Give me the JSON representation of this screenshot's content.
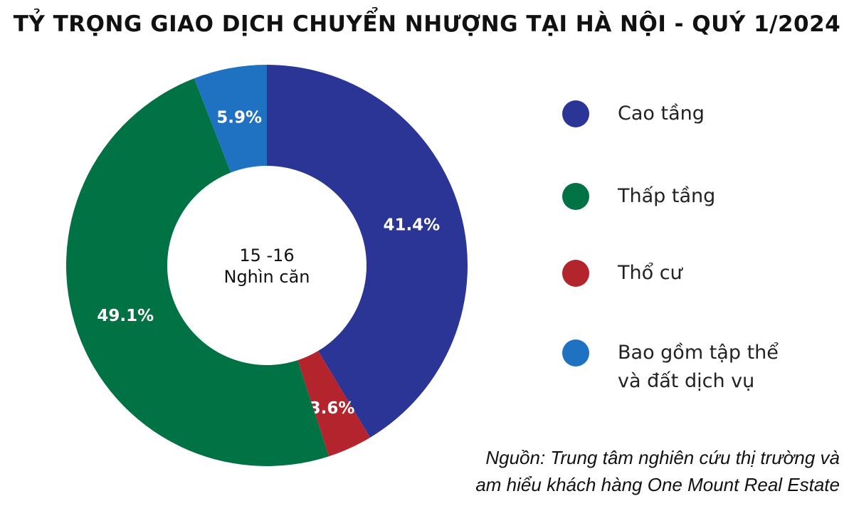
{
  "chart_data": {
    "type": "pie",
    "donut": true,
    "title": "TỶ TRỌNG GIAO DỊCH CHUYỂN NHƯỢNG TẠI HÀ NỘI - QUÝ 1/2024",
    "center_label": [
      "15 -16",
      "Nghìn căn"
    ],
    "slices": [
      {
        "name": "Cao tầng",
        "value": 41.4,
        "label": "41.4%",
        "color": "#2b3595"
      },
      {
        "name": "Thổ cư",
        "value": 3.6,
        "label": "3.6%",
        "color": "#b3242c"
      },
      {
        "name": "Thấp tầng",
        "value": 49.1,
        "label": "49.1%",
        "color": "#017244"
      },
      {
        "name": "Bao gồm tập thể và đất dịch vụ",
        "value": 5.9,
        "label": "5.9%",
        "color": "#1f72c1"
      }
    ],
    "legend_position": "right"
  },
  "legend": [
    {
      "lines": [
        "Cao tầng"
      ],
      "color": "#2b3595"
    },
    {
      "lines": [
        "Thấp tầng"
      ],
      "color": "#017244"
    },
    {
      "lines": [
        "Thổ cư"
      ],
      "color": "#b3242c"
    },
    {
      "lines": [
        "Bao gồm tập thể",
        "và đất dịch vụ"
      ],
      "color": "#1f72c1"
    }
  ],
  "source": {
    "line1": "Nguồn: Trung tâm nghiên cứu thị trường và",
    "line2": "am hiểu khách hàng One Mount Real Estate"
  }
}
